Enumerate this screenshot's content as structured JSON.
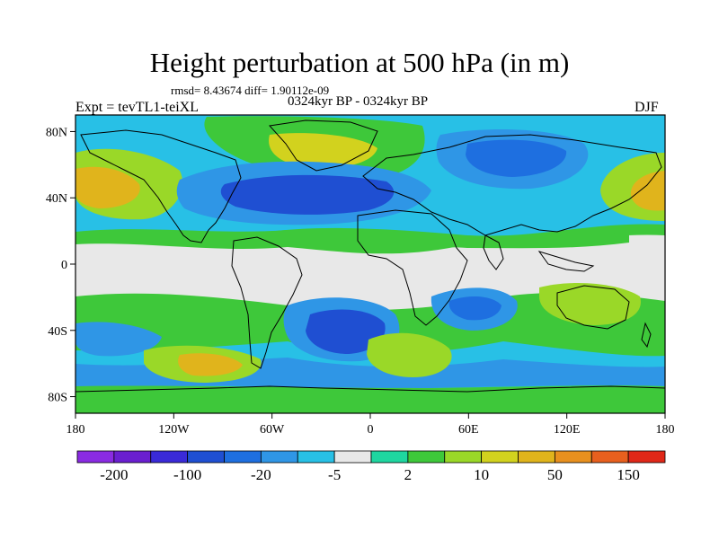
{
  "title": "Height perturbation at 500 hPa (in m)",
  "stats_line": "rmsd= 8.43674 diff= 1.90112e-09",
  "subtitle": "0324kyr BP - 0324kyr BP",
  "left_label": "Expt = tevTL1-teiXL",
  "right_label": "DJF",
  "map": {
    "projection": "cylindrical-equidistant",
    "lon_ticks": [
      "180",
      "120W",
      "60W",
      "0",
      "60E",
      "120E",
      "180"
    ],
    "lat_ticks": [
      "80N",
      "40N",
      "0",
      "40S",
      "80S"
    ],
    "land_outline_color": "#000000"
  },
  "colorbar": {
    "colors": [
      "#8a2be2",
      "#6a1fd0",
      "#3a2ad8",
      "#1f4fd2",
      "#1e6fe0",
      "#2f96e6",
      "#28c0e6",
      "#e8e8e8",
      "#1fd6a0",
      "#3ec83a",
      "#9ad828",
      "#d2d21e",
      "#e0b41c",
      "#e8901e",
      "#e8601e",
      "#e02818"
    ],
    "labels": [
      "-200",
      "-100",
      "-20",
      "-5",
      "2",
      "10",
      "50",
      "150"
    ]
  },
  "palette": {
    "ocean_neutral": "#e8e8e8",
    "cyan": "#28c0e6",
    "light_blue": "#2f96e6",
    "mid_blue": "#1e6fe0",
    "deep_blue": "#1f4fd2",
    "teal": "#1fd6a0",
    "green": "#3ec83a",
    "yellow_green": "#9ad828",
    "yellow": "#d2d21e",
    "orange": "#e0b41c"
  }
}
